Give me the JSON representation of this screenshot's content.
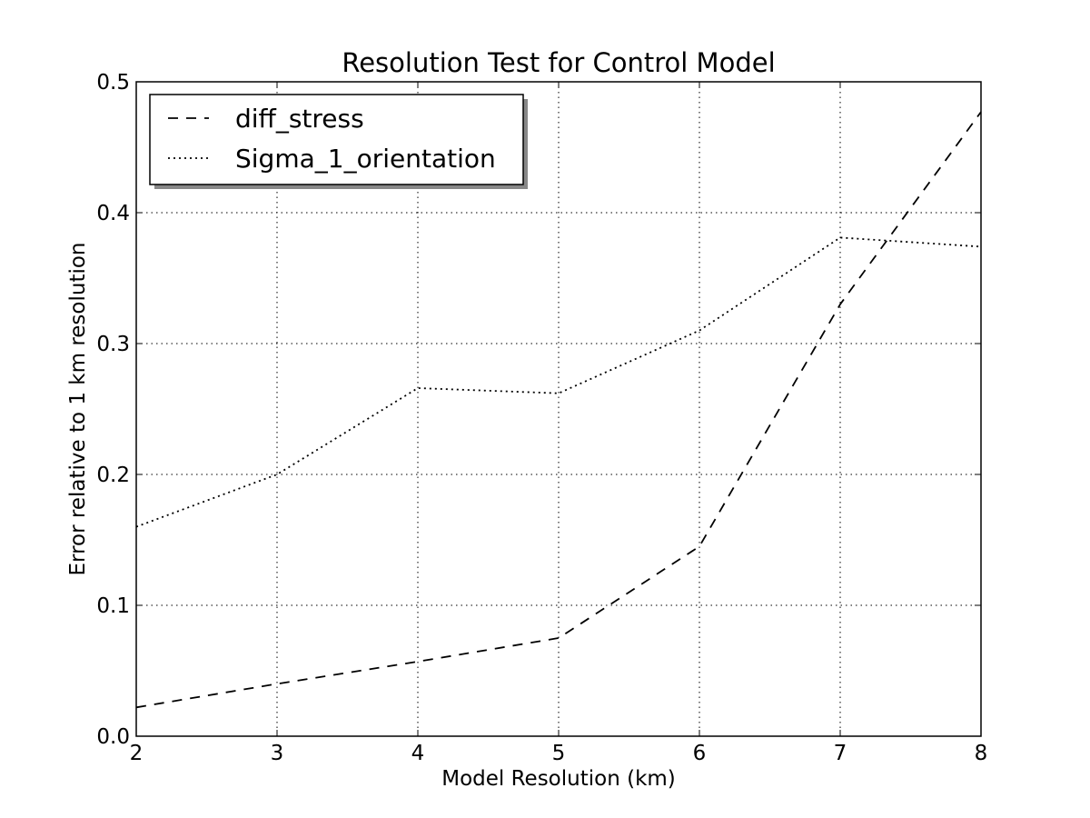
{
  "chart_data": {
    "type": "line",
    "title": "Resolution Test for Control Model",
    "xlabel": "Model Resolution (km)",
    "ylabel": "Error relative to 1 km resolution",
    "xlim": [
      2,
      8
    ],
    "ylim": [
      0,
      0.5
    ],
    "xticks": [
      2,
      3,
      4,
      5,
      6,
      7,
      8
    ],
    "xtick_labels": [
      "2",
      "3",
      "4",
      "5",
      "6",
      "7",
      "8"
    ],
    "yticks": [
      0,
      0.1,
      0.2,
      0.3,
      0.4,
      0.5
    ],
    "ytick_labels": [
      "0.0",
      "0.1",
      "0.2",
      "0.3",
      "0.4",
      "0.5"
    ],
    "grid": true,
    "legend_position": "top-left",
    "series": [
      {
        "name": "diff_stress",
        "style": "dashed",
        "color": "#000000",
        "x": [
          2,
          3,
          4,
          5,
          6,
          7,
          8
        ],
        "y": [
          0.022,
          0.04,
          0.057,
          0.075,
          0.145,
          0.33,
          0.477
        ]
      },
      {
        "name": "Sigma_1_orientation",
        "style": "dotted",
        "color": "#000000",
        "x": [
          2,
          3,
          4,
          5,
          6,
          7,
          8
        ],
        "y": [
          0.16,
          0.2,
          0.266,
          0.262,
          0.31,
          0.381,
          0.374
        ]
      }
    ]
  }
}
